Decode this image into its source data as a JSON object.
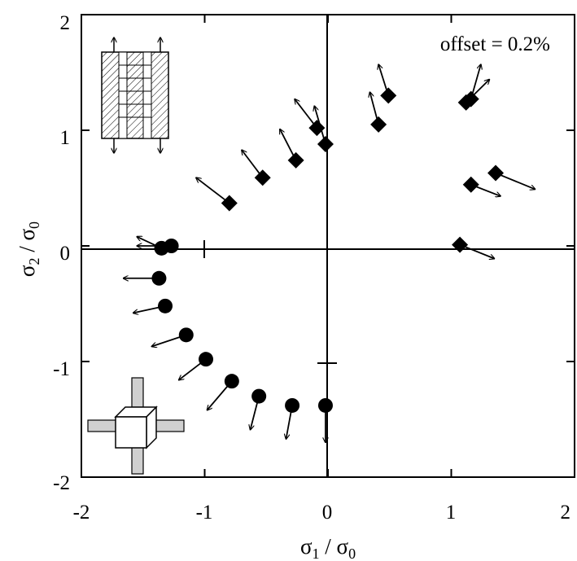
{
  "chart_data": {
    "type": "scatter",
    "annotation": "offset = 0.2%",
    "xlabel": {
      "main": "σ",
      "sub1": "1",
      "sep": " / σ",
      "sub2": "0"
    },
    "ylabel": {
      "main": "σ",
      "sub1": "2",
      "sep": " / σ",
      "sub2": "0"
    },
    "xlim": [
      -2,
      2
    ],
    "ylim": [
      -2,
      2
    ],
    "xticks": [
      -2,
      -1,
      0,
      1,
      2
    ],
    "yticks": [
      -2,
      -1,
      0,
      1,
      2
    ],
    "xtick_labels": [
      "-2",
      "-1",
      "0",
      "1",
      "2"
    ],
    "ytick_labels": [
      "-2",
      "-1",
      "0",
      "1",
      "2"
    ],
    "grid": false,
    "zero_lines": true,
    "series": [
      {
        "marker": "diamond",
        "points": [
          {
            "x": -0.8,
            "y": 0.37,
            "dx": -0.27,
            "dy": 0.22
          },
          {
            "x": -0.53,
            "y": 0.59,
            "dx": -0.17,
            "dy": 0.24
          },
          {
            "x": -0.26,
            "y": 0.74,
            "dx": -0.13,
            "dy": 0.27
          },
          {
            "x": -0.09,
            "y": 1.02,
            "dx": -0.18,
            "dy": 0.25
          },
          {
            "x": -0.02,
            "y": 0.88,
            "dx": -0.09,
            "dy": 0.33
          },
          {
            "x": 0.41,
            "y": 1.05,
            "dx": -0.07,
            "dy": 0.28
          },
          {
            "x": 0.49,
            "y": 1.3,
            "dx": -0.08,
            "dy": 0.27
          },
          {
            "x": 1.12,
            "y": 1.24,
            "dx": 0.19,
            "dy": 0.2
          },
          {
            "x": 1.16,
            "y": 1.27,
            "dx": 0.08,
            "dy": 0.3
          },
          {
            "x": 1.16,
            "y": 0.53,
            "dx": 0.24,
            "dy": -0.1
          },
          {
            "x": 1.36,
            "y": 0.63,
            "dx": 0.32,
            "dy": -0.14
          },
          {
            "x": 1.07,
            "y": 0.01,
            "dx": 0.28,
            "dy": -0.12
          }
        ]
      },
      {
        "marker": "circle",
        "points": [
          {
            "x": -1.35,
            "y": -0.02,
            "dx": -0.2,
            "dy": 0.1
          },
          {
            "x": -1.27,
            "y": 0.0,
            "dx": -0.28,
            "dy": 0.0
          },
          {
            "x": -1.37,
            "y": -0.28,
            "dx": -0.29,
            "dy": 0.0
          },
          {
            "x": -1.32,
            "y": -0.52,
            "dx": -0.26,
            "dy": -0.06
          },
          {
            "x": -1.15,
            "y": -0.77,
            "dx": -0.28,
            "dy": -0.1
          },
          {
            "x": -0.99,
            "y": -0.98,
            "dx": -0.22,
            "dy": -0.18
          },
          {
            "x": -0.78,
            "y": -1.17,
            "dx": -0.2,
            "dy": -0.25
          },
          {
            "x": -0.56,
            "y": -1.3,
            "dx": -0.07,
            "dy": -0.29
          },
          {
            "x": -0.29,
            "y": -1.38,
            "dx": -0.05,
            "dy": -0.29
          },
          {
            "x": -0.02,
            "y": -1.38,
            "dx": 0.0,
            "dy": -0.32
          }
        ]
      }
    ]
  }
}
